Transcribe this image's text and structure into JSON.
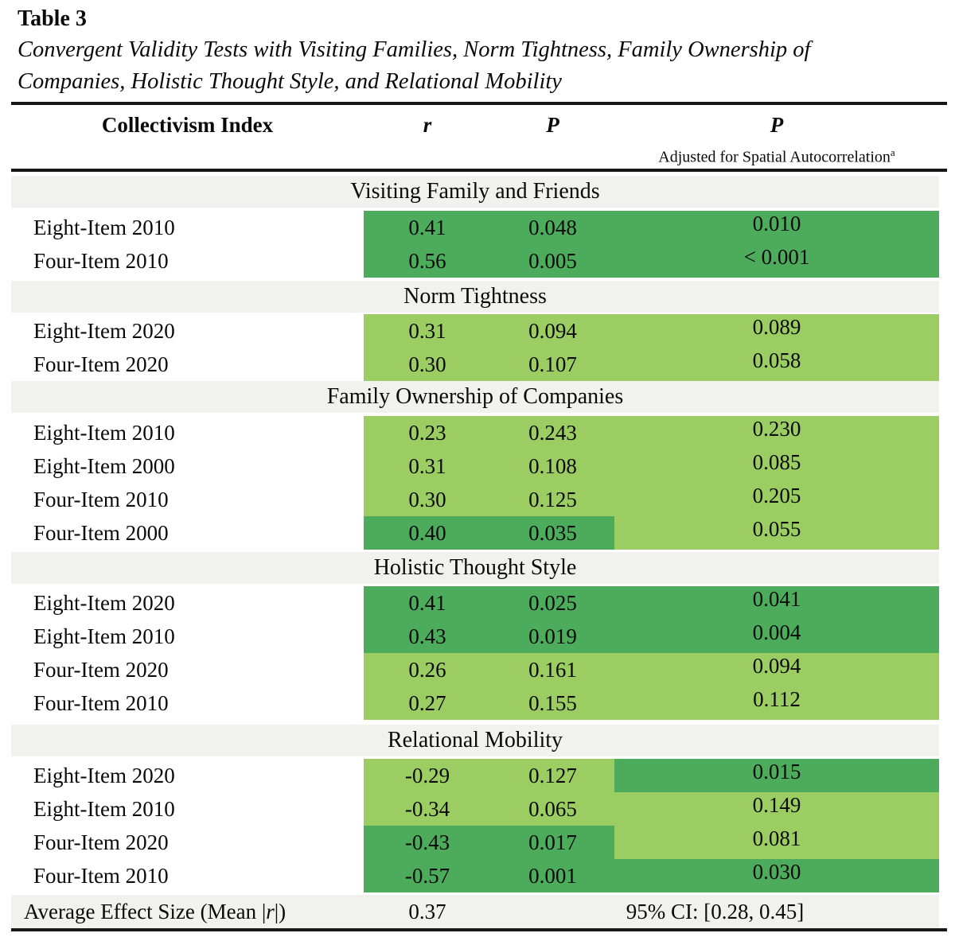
{
  "title": {
    "table_label": "Table 3",
    "line1": "Convergent Validity Tests with Visiting Families, Norm Tightness, Family Ownership of",
    "line2": "Companies, Holistic Thought Style, and Relational Mobility"
  },
  "colors": {
    "dark-green": "#4dac5c",
    "light-green": "#9ccd63",
    "section-gray": "#f1f1f0"
  },
  "header": {
    "col_label": "Collectivism Index",
    "col_r": "r",
    "col_p": "P",
    "col_p_adj": "P",
    "col_p_adj_sub": "Adjusted for Spatial Autocorrelation",
    "col_p_adj_sup": "a"
  },
  "sections": [
    {
      "title": "Visiting Family and Friends",
      "rows": [
        {
          "label": "Eight-Item 2010",
          "r": "0.41",
          "p": "0.048",
          "p_adj": "0.010",
          "shades": [
            "dark",
            "dark",
            "dark"
          ]
        },
        {
          "label": "Four-Item 2010",
          "r": "0.56",
          "p": "0.005",
          "p_adj": "< 0.001",
          "shades": [
            "dark",
            "dark",
            "dark"
          ]
        }
      ]
    },
    {
      "title": "Norm Tightness",
      "rows": [
        {
          "label": "Eight-Item 2020",
          "r": "0.31",
          "p": "0.094",
          "p_adj": "0.089",
          "shades": [
            "light",
            "light",
            "light"
          ]
        },
        {
          "label": "Four-Item 2020",
          "r": "0.30",
          "p": "0.107",
          "p_adj": "0.058",
          "shades": [
            "light",
            "light",
            "light"
          ]
        }
      ]
    },
    {
      "title": "Family Ownership of Companies",
      "rows": [
        {
          "label": "Eight-Item 2010",
          "r": "0.23",
          "p": "0.243",
          "p_adj": "0.230",
          "shades": [
            "light",
            "light",
            "light"
          ]
        },
        {
          "label": "Eight-Item 2000",
          "r": "0.31",
          "p": "0.108",
          "p_adj": "0.085",
          "shades": [
            "light",
            "light",
            "light"
          ]
        },
        {
          "label": "Four-Item 2010",
          "r": "0.30",
          "p": "0.125",
          "p_adj": "0.205",
          "shades": [
            "light",
            "light",
            "light"
          ]
        },
        {
          "label": "Four-Item 2000",
          "r": "0.40",
          "p": "0.035",
          "p_adj": "0.055",
          "shades": [
            "dark",
            "dark",
            "light"
          ]
        }
      ]
    },
    {
      "title": "Holistic Thought Style",
      "rows": [
        {
          "label": "Eight-Item 2020",
          "r": "0.41",
          "p": "0.025",
          "p_adj": "0.041",
          "shades": [
            "dark",
            "dark",
            "dark"
          ]
        },
        {
          "label": "Eight-Item 2010",
          "r": "0.43",
          "p": "0.019",
          "p_adj": "0.004",
          "shades": [
            "dark",
            "dark",
            "dark"
          ]
        },
        {
          "label": "Four-Item 2020",
          "r": "0.26",
          "p": "0.161",
          "p_adj": "0.094",
          "shades": [
            "light",
            "light",
            "light"
          ]
        },
        {
          "label": "Four-Item 2010",
          "r": "0.27",
          "p": "0.155",
          "p_adj": "0.112",
          "shades": [
            "light",
            "light",
            "light"
          ]
        }
      ]
    },
    {
      "title": "Relational Mobility",
      "rows": [
        {
          "label": "Eight-Item 2020",
          "r": "-0.29",
          "p": "0.127",
          "p_adj": "0.015",
          "shades": [
            "light",
            "light",
            "dark"
          ]
        },
        {
          "label": "Eight-Item 2010",
          "r": "-0.34",
          "p": "0.065",
          "p_adj": "0.149",
          "shades": [
            "light",
            "light",
            "light"
          ]
        },
        {
          "label": "Four-Item 2020",
          "r": "-0.43",
          "p": "0.017",
          "p_adj": "0.081",
          "shades": [
            "dark",
            "dark",
            "light"
          ]
        },
        {
          "label": "Four-Item 2010",
          "r": "-0.57",
          "p": "0.001",
          "p_adj": "0.030",
          "shades": [
            "dark",
            "dark",
            "dark"
          ]
        }
      ]
    }
  ],
  "summary": {
    "label_prefix": "Average Effect Size (Mean |",
    "label_r": "r",
    "label_suffix": "|)",
    "r_value": "0.37",
    "ci": "95% CI: [0.28, 0.45]"
  }
}
